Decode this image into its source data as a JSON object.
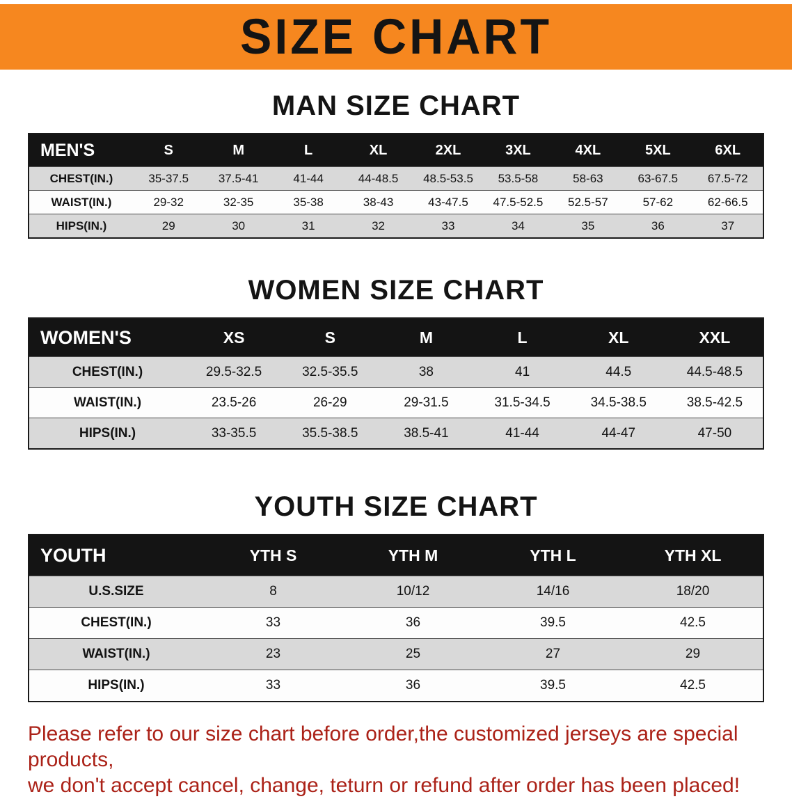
{
  "banner": {
    "title": "SIZE CHART"
  },
  "men": {
    "heading": "MAN SIZE CHART",
    "table": {
      "header": [
        "MEN'S",
        "S",
        "M",
        "L",
        "XL",
        "2XL",
        "3XL",
        "4XL",
        "5XL",
        "6XL"
      ],
      "rows": [
        {
          "label": "CHEST(IN.)",
          "values": [
            "35-37.5",
            "37.5-41",
            "41-44",
            "44-48.5",
            "48.5-53.5",
            "53.5-58",
            "58-63",
            "63-67.5",
            "67.5-72"
          ]
        },
        {
          "label": "WAIST(IN.)",
          "values": [
            "29-32",
            "32-35",
            "35-38",
            "38-43",
            "43-47.5",
            "47.5-52.5",
            "52.5-57",
            "57-62",
            "62-66.5"
          ]
        },
        {
          "label": "HIPS(IN.)",
          "values": [
            "29",
            "30",
            "31",
            "32",
            "33",
            "34",
            "35",
            "36",
            "37"
          ]
        }
      ]
    }
  },
  "women": {
    "heading": "WOMEN SIZE CHART",
    "table": {
      "header": [
        "WOMEN'S",
        "XS",
        "S",
        "M",
        "L",
        "XL",
        "XXL"
      ],
      "rows": [
        {
          "label": "CHEST(IN.)",
          "values": [
            "29.5-32.5",
            "32.5-35.5",
            "38",
            "41",
            "44.5",
            "44.5-48.5"
          ]
        },
        {
          "label": "WAIST(IN.)",
          "values": [
            "23.5-26",
            "26-29",
            "29-31.5",
            "31.5-34.5",
            "34.5-38.5",
            "38.5-42.5"
          ]
        },
        {
          "label": "HIPS(IN.)",
          "values": [
            "33-35.5",
            "35.5-38.5",
            "38.5-41",
            "41-44",
            "44-47",
            "47-50"
          ]
        }
      ]
    }
  },
  "youth": {
    "heading": "YOUTH SIZE CHART",
    "table": {
      "header": [
        "YOUTH",
        "YTH S",
        "YTH M",
        "YTH L",
        "YTH XL"
      ],
      "rows": [
        {
          "label": "U.S.SIZE",
          "values": [
            "8",
            "10/12",
            "14/16",
            "18/20"
          ]
        },
        {
          "label": "CHEST(IN.)",
          "values": [
            "33",
            "36",
            "39.5",
            "42.5"
          ]
        },
        {
          "label": "WAIST(IN.)",
          "values": [
            "23",
            "25",
            "27",
            "29"
          ]
        },
        {
          "label": "HIPS(IN.)",
          "values": [
            "33",
            "36",
            "39.5",
            "42.5"
          ]
        }
      ]
    }
  },
  "disclaimer": {
    "line1": "Please refer to our size chart before order,the customized jerseys are special products,",
    "line2": "we don't accept cancel, change, teturn or refund after order has been placed!"
  },
  "colors": {
    "banner_bg": "#f6871f",
    "table_header_bg": "#141414",
    "row_alt_bg": "#d9d9d9",
    "disclaimer_text": "#ab2218"
  }
}
